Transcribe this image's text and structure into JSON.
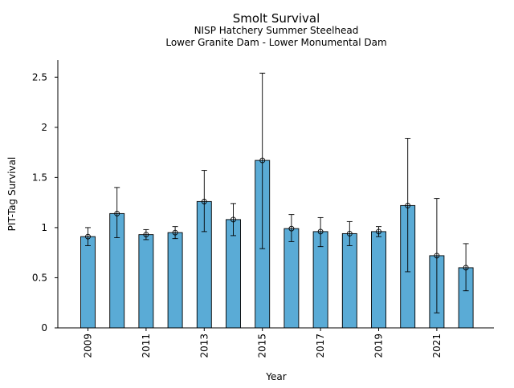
{
  "chart_data": {
    "type": "bar",
    "title": "Smolt Survival",
    "subtitle_lines": [
      "NISP Hatchery Summer Steelhead",
      "Lower Granite Dam - Lower Monumental Dam"
    ],
    "xlabel": "Year",
    "ylabel": "PIT-Tag Survival",
    "categories": [
      2009,
      2010,
      2011,
      2012,
      2013,
      2014,
      2015,
      2016,
      2017,
      2018,
      2019,
      2020,
      2021,
      2022
    ],
    "x_tick_labels": [
      "2009",
      "2011",
      "2013",
      "2015",
      "2017",
      "2019",
      "2021"
    ],
    "values": [
      0.91,
      1.14,
      0.93,
      0.95,
      1.26,
      1.08,
      1.67,
      0.99,
      0.96,
      0.94,
      0.96,
      1.22,
      0.72,
      0.6
    ],
    "error_low": [
      0.82,
      0.9,
      0.88,
      0.89,
      0.96,
      0.92,
      0.79,
      0.86,
      0.81,
      0.82,
      0.91,
      0.56,
      0.15,
      0.37
    ],
    "error_high": [
      1.0,
      1.4,
      0.98,
      1.01,
      1.57,
      1.24,
      2.54,
      1.13,
      1.1,
      1.06,
      1.01,
      1.89,
      1.29,
      0.84
    ],
    "ylim": [
      0,
      2.67
    ],
    "y_ticks": [
      0,
      0.5,
      1,
      1.5,
      2,
      2.5
    ],
    "y_tick_labels": [
      "0",
      "0.5",
      "1",
      "1.5",
      "2",
      "2.5"
    ],
    "grid": false,
    "legend": "none",
    "bar_color": "#5aabd6",
    "bar_edge_color": "#000000",
    "error_bar_color": "#000000",
    "marker": "open-circle"
  }
}
